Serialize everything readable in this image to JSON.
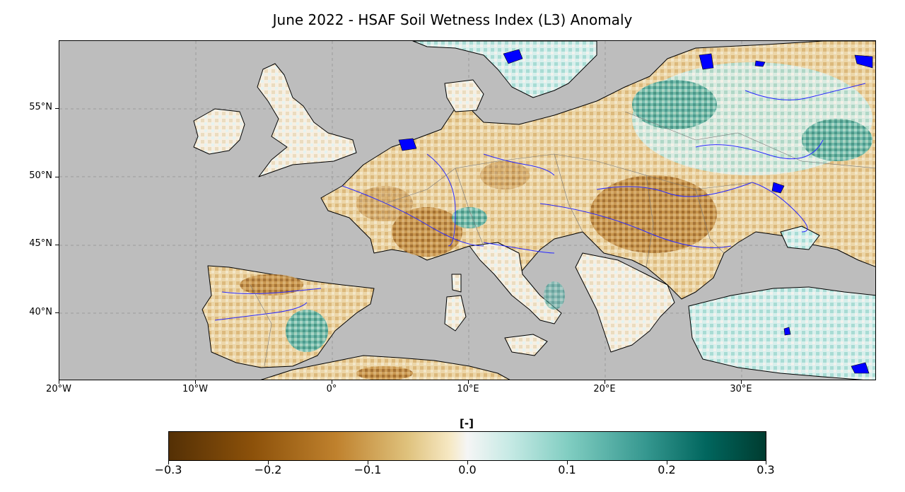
{
  "title": "June 2022 - HSAF Soil Wetness Index (L3) Anomaly",
  "map": {
    "projection": "PlateCarree",
    "lon_range": [
      -20,
      40
    ],
    "lat_range": [
      35,
      60
    ],
    "ocean_color": "#bdbdbd",
    "lake_color": "#0000ff",
    "river_color": "#2a2aff",
    "gridlines": "dashed grey",
    "lat_ticks": [
      "55°N",
      "50°N",
      "45°N",
      "40°N"
    ],
    "lon_ticks": [
      "20°W",
      "10°W",
      "0°",
      "10°E",
      "20°E",
      "30°E"
    ]
  },
  "colorbar": {
    "label": "[-]",
    "colormap": "BrBG",
    "range": [
      -0.3,
      0.3
    ],
    "ticks": [
      "−0.3",
      "−0.2",
      "−0.1",
      "0.0",
      "0.1",
      "0.2",
      "0.3"
    ]
  }
}
